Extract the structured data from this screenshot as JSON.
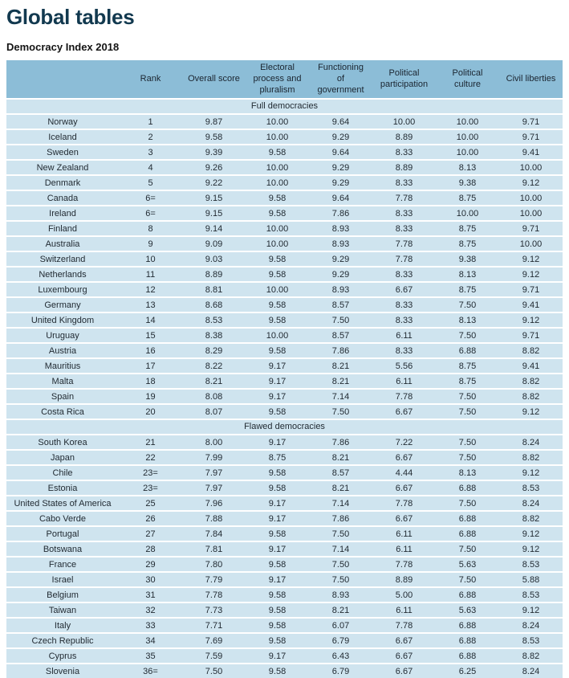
{
  "page": {
    "title": "Global tables",
    "subtitle": "Democracy Index 2018"
  },
  "colors": {
    "title": "#12394f",
    "header_bg": "#8cbdd7",
    "row_bg": "#cfe4ef",
    "text": "#222b33"
  },
  "table": {
    "columns": [
      "",
      "Rank",
      "Overall score",
      "Electoral process and pluralism",
      "Functioning of government",
      "Political participation",
      "Political culture",
      "Civil liberties"
    ],
    "column_keys": [
      "country",
      "rank",
      "overall_score",
      "electoral_process_and_pluralism",
      "functioning_of_government",
      "political_participation",
      "political_culture",
      "civil_liberties"
    ],
    "sections": [
      {
        "label": "Full democracies",
        "rows": [
          [
            "Norway",
            "1",
            "9.87",
            "10.00",
            "9.64",
            "10.00",
            "10.00",
            "9.71"
          ],
          [
            "Iceland",
            "2",
            "9.58",
            "10.00",
            "9.29",
            "8.89",
            "10.00",
            "9.71"
          ],
          [
            "Sweden",
            "3",
            "9.39",
            "9.58",
            "9.64",
            "8.33",
            "10.00",
            "9.41"
          ],
          [
            "New Zealand",
            "4",
            "9.26",
            "10.00",
            "9.29",
            "8.89",
            "8.13",
            "10.00"
          ],
          [
            "Denmark",
            "5",
            "9.22",
            "10.00",
            "9.29",
            "8.33",
            "9.38",
            "9.12"
          ],
          [
            "Canada",
            "6=",
            "9.15",
            "9.58",
            "9.64",
            "7.78",
            "8.75",
            "10.00"
          ],
          [
            "Ireland",
            "6=",
            "9.15",
            "9.58",
            "7.86",
            "8.33",
            "10.00",
            "10.00"
          ],
          [
            "Finland",
            "8",
            "9.14",
            "10.00",
            "8.93",
            "8.33",
            "8.75",
            "9.71"
          ],
          [
            "Australia",
            "9",
            "9.09",
            "10.00",
            "8.93",
            "7.78",
            "8.75",
            "10.00"
          ],
          [
            "Switzerland",
            "10",
            "9.03",
            "9.58",
            "9.29",
            "7.78",
            "9.38",
            "9.12"
          ],
          [
            "Netherlands",
            "11",
            "8.89",
            "9.58",
            "9.29",
            "8.33",
            "8.13",
            "9.12"
          ],
          [
            "Luxembourg",
            "12",
            "8.81",
            "10.00",
            "8.93",
            "6.67",
            "8.75",
            "9.71"
          ],
          [
            "Germany",
            "13",
            "8.68",
            "9.58",
            "8.57",
            "8.33",
            "7.50",
            "9.41"
          ],
          [
            "United Kingdom",
            "14",
            "8.53",
            "9.58",
            "7.50",
            "8.33",
            "8.13",
            "9.12"
          ],
          [
            "Uruguay",
            "15",
            "8.38",
            "10.00",
            "8.57",
            "6.11",
            "7.50",
            "9.71"
          ],
          [
            "Austria",
            "16",
            "8.29",
            "9.58",
            "7.86",
            "8.33",
            "6.88",
            "8.82"
          ],
          [
            "Mauritius",
            "17",
            "8.22",
            "9.17",
            "8.21",
            "5.56",
            "8.75",
            "9.41"
          ],
          [
            "Malta",
            "18",
            "8.21",
            "9.17",
            "8.21",
            "6.11",
            "8.75",
            "8.82"
          ],
          [
            "Spain",
            "19",
            "8.08",
            "9.17",
            "7.14",
            "7.78",
            "7.50",
            "8.82"
          ],
          [
            "Costa Rica",
            "20",
            "8.07",
            "9.58",
            "7.50",
            "6.67",
            "7.50",
            "9.12"
          ]
        ]
      },
      {
        "label": "Flawed democracies",
        "rows": [
          [
            "South Korea",
            "21",
            "8.00",
            "9.17",
            "7.86",
            "7.22",
            "7.50",
            "8.24"
          ],
          [
            "Japan",
            "22",
            "7.99",
            "8.75",
            "8.21",
            "6.67",
            "7.50",
            "8.82"
          ],
          [
            "Chile",
            "23=",
            "7.97",
            "9.58",
            "8.57",
            "4.44",
            "8.13",
            "9.12"
          ],
          [
            "Estonia",
            "23=",
            "7.97",
            "9.58",
            "8.21",
            "6.67",
            "6.88",
            "8.53"
          ],
          [
            "United States of America",
            "25",
            "7.96",
            "9.17",
            "7.14",
            "7.78",
            "7.50",
            "8.24"
          ],
          [
            "Cabo Verde",
            "26",
            "7.88",
            "9.17",
            "7.86",
            "6.67",
            "6.88",
            "8.82"
          ],
          [
            "Portugal",
            "27",
            "7.84",
            "9.58",
            "7.50",
            "6.11",
            "6.88",
            "9.12"
          ],
          [
            "Botswana",
            "28",
            "7.81",
            "9.17",
            "7.14",
            "6.11",
            "7.50",
            "9.12"
          ],
          [
            "France",
            "29",
            "7.80",
            "9.58",
            "7.50",
            "7.78",
            "5.63",
            "8.53"
          ],
          [
            "Israel",
            "30",
            "7.79",
            "9.17",
            "7.50",
            "8.89",
            "7.50",
            "5.88"
          ],
          [
            "Belgium",
            "31",
            "7.78",
            "9.58",
            "8.93",
            "5.00",
            "6.88",
            "8.53"
          ],
          [
            "Taiwan",
            "32",
            "7.73",
            "9.58",
            "8.21",
            "6.11",
            "5.63",
            "9.12"
          ],
          [
            "Italy",
            "33",
            "7.71",
            "9.58",
            "6.07",
            "7.78",
            "6.88",
            "8.24"
          ],
          [
            "Czech Republic",
            "34",
            "7.69",
            "9.58",
            "6.79",
            "6.67",
            "6.88",
            "8.53"
          ],
          [
            "Cyprus",
            "35",
            "7.59",
            "9.17",
            "6.43",
            "6.67",
            "6.88",
            "8.82"
          ],
          [
            "Slovenia",
            "36=",
            "7.50",
            "9.58",
            "6.79",
            "6.67",
            "6.25",
            "8.24"
          ]
        ]
      }
    ]
  }
}
